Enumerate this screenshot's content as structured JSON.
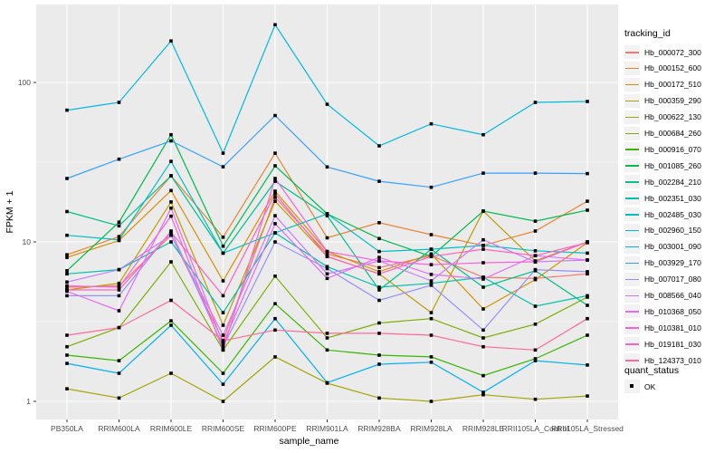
{
  "figure": {
    "background": "#FFFFFF",
    "panel_background": "#EBEBEB",
    "gridline_color": "#FFFFFF",
    "axis_text_color": "#4D4D4D",
    "tick_color": "#333333",
    "marker_color": "#000000",
    "legend_key_background": "#F2F2F2"
  },
  "chart_data": {
    "type": "line",
    "title": "",
    "xlabel": "sample_name",
    "ylabel": "FPKM + 1",
    "y_scale": "log10",
    "y_ticks": [
      1,
      10,
      100
    ],
    "ylim": [
      0.8,
      310
    ],
    "grid": true,
    "legend_position": "right",
    "marker": "black-square",
    "categories": [
      "PB350LA",
      "RRIM600LA",
      "RRIM600LE",
      "RRIM600SE",
      "RRIM600PE",
      "RRIM901LA",
      "RRIM928BA",
      "RRIM928LA",
      "RRIM928LE",
      "RRII105LA_Control",
      "RRII105LA_Stressed"
    ],
    "series": [
      {
        "name": "Hb_000072_300",
        "color": "#F8766D",
        "values": [
          5.2,
          5.3,
          11.0,
          2.4,
          19.0,
          8.4,
          6.9,
          8.2,
          6.0,
          5.9,
          6.3
        ]
      },
      {
        "name": "Hb_000152_600",
        "color": "#EA8331",
        "values": [
          8.3,
          10.8,
          26.0,
          10.7,
          36.0,
          10.6,
          13.2,
          11.1,
          9.5,
          11.7,
          18.0
        ]
      },
      {
        "name": "Hb_000172_510",
        "color": "#D89000",
        "values": [
          8.0,
          10.2,
          21.0,
          5.7,
          20.8,
          8.7,
          6.5,
          8.4,
          3.8,
          5.8,
          9.9
        ]
      },
      {
        "name": "Hb_000359_290",
        "color": "#C09B00",
        "values": [
          5.0,
          5.5,
          17.8,
          3.0,
          18.0,
          8.1,
          6.3,
          3.6,
          15.6,
          7.6,
          10.0
        ]
      },
      {
        "name": "Hb_000622_130",
        "color": "#A3A500",
        "values": [
          1.2,
          1.05,
          1.5,
          1.0,
          1.9,
          1.3,
          1.05,
          1.0,
          1.1,
          1.03,
          1.08
        ]
      },
      {
        "name": "Hb_000684_260",
        "color": "#7CAE00",
        "values": [
          2.2,
          2.9,
          7.5,
          2.1,
          6.1,
          2.5,
          3.1,
          3.3,
          2.5,
          3.05,
          4.5
        ]
      },
      {
        "name": "Hb_000916_070",
        "color": "#39B600",
        "values": [
          1.95,
          1.8,
          3.2,
          1.5,
          4.1,
          2.1,
          1.95,
          1.9,
          1.45,
          1.85,
          2.6
        ]
      },
      {
        "name": "Hb_001085_260",
        "color": "#00BB4E",
        "values": [
          6.6,
          13.3,
          47.0,
          9.4,
          30.0,
          15.0,
          10.5,
          8.1,
          15.6,
          13.5,
          15.8
        ]
      },
      {
        "name": "Hb_002284_210",
        "color": "#00C087",
        "values": [
          15.5,
          12.6,
          26.0,
          8.5,
          24.0,
          14.6,
          5.0,
          9.0,
          5.2,
          6.6,
          4.0
        ]
      },
      {
        "name": "Hb_002351_030",
        "color": "#00C1AB",
        "values": [
          6.3,
          6.7,
          10.0,
          3.6,
          11.4,
          7.0,
          5.2,
          5.5,
          6.0,
          3.95,
          4.6
        ]
      },
      {
        "name": "Hb_002485_030",
        "color": "#00BFC4",
        "values": [
          11.0,
          10.3,
          32.0,
          8.5,
          11.4,
          15.0,
          8.7,
          9.0,
          9.5,
          8.8,
          8.5
        ]
      },
      {
        "name": "Hb_002960_150",
        "color": "#00BAE0",
        "values": [
          67,
          75,
          182,
          36,
          230,
          73,
          40,
          55,
          47,
          75,
          76
        ]
      },
      {
        "name": "Hb_003001_090",
        "color": "#00B0F6",
        "values": [
          1.73,
          1.5,
          3.0,
          1.28,
          3.3,
          1.31,
          1.71,
          1.76,
          1.14,
          1.8,
          1.69
        ]
      },
      {
        "name": "Hb_003929_170",
        "color": "#35A2FF",
        "values": [
          25,
          33,
          43,
          29.6,
          62,
          29.5,
          24,
          22,
          27,
          27,
          26.8
        ]
      },
      {
        "name": "Hb_007017_080",
        "color": "#9590FF",
        "values": [
          4.6,
          4.6,
          11.7,
          2.2,
          10.0,
          6.8,
          4.3,
          5.35,
          2.8,
          6.7,
          6.5
        ]
      },
      {
        "name": "Hb_008566_040",
        "color": "#C77CFF",
        "values": [
          5.6,
          6.7,
          11.0,
          2.6,
          14.6,
          6.3,
          7.6,
          5.7,
          10.3,
          7.5,
          7.7
        ]
      },
      {
        "name": "Hb_010368_050",
        "color": "#E76BF3",
        "values": [
          4.9,
          3.7,
          16.3,
          2.3,
          13.0,
          5.9,
          8.0,
          6.25,
          5.85,
          8.2,
          7.7
        ]
      },
      {
        "name": "Hb_010381_010",
        "color": "#FA62DB",
        "values": [
          5.3,
          5.2,
          14.5,
          2.1,
          25.0,
          8.7,
          7.6,
          7.2,
          7.4,
          7.5,
          10.0
        ]
      },
      {
        "name": "Hb_019181_030",
        "color": "#FF62BC",
        "values": [
          5.0,
          5.0,
          11.5,
          4.6,
          20.0,
          8.1,
          6.3,
          8.1,
          9.0,
          8.2,
          9.9
        ]
      },
      {
        "name": "Hb_124373_010",
        "color": "#FF6A98",
        "values": [
          2.6,
          2.9,
          4.3,
          2.4,
          2.8,
          2.67,
          2.67,
          2.6,
          2.2,
          2.1,
          3.3
        ]
      }
    ]
  },
  "legend": {
    "tracking_title": "tracking_id",
    "quant_title": "quant_status",
    "quant_items": [
      {
        "label": "OK"
      }
    ]
  }
}
